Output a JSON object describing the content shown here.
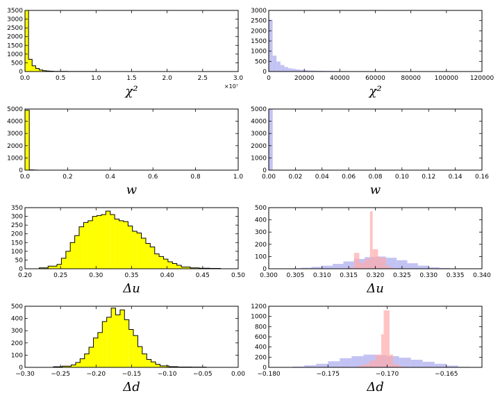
{
  "chart_data": [
    {
      "type": "histogram",
      "xlabel": "χ²",
      "xlim": [
        0,
        3.0
      ],
      "ylim": [
        0,
        3500
      ],
      "x_multiplier_label": "×10⁷",
      "xticks": [
        "0.0",
        "0.5",
        "1.0",
        "1.5",
        "2.0",
        "2.5",
        "3.0"
      ],
      "yticks": [
        "0",
        "500",
        "1000",
        "1500",
        "2000",
        "2500",
        "3000",
        "3500"
      ],
      "series": [
        {
          "color": "#ffff00",
          "edge": "#000000",
          "style": "step-filled",
          "bins": [
            0,
            0.05,
            0.1,
            0.15,
            0.2,
            0.25,
            0.3,
            0.35,
            0.4,
            0.5,
            0.6,
            0.8,
            1.0,
            1.5,
            2.0,
            2.6
          ],
          "counts": [
            3500,
            700,
            330,
            180,
            90,
            50,
            30,
            20,
            12,
            8,
            5,
            3,
            2,
            1,
            1
          ]
        }
      ]
    },
    {
      "type": "histogram",
      "xlabel": "χ²",
      "xlim": [
        0,
        120000
      ],
      "ylim": [
        0,
        3000
      ],
      "xticks": [
        "0",
        "20000",
        "40000",
        "60000",
        "80000",
        "100000",
        "120000"
      ],
      "yticks": [
        "0",
        "500",
        "1000",
        "1500",
        "2000",
        "2500",
        "3000"
      ],
      "series": [
        {
          "color": "#aaaaee",
          "edge": "#8888dd",
          "style": "filled",
          "bins": [
            0,
            2200,
            4400,
            6600,
            8800,
            11000,
            13200,
            15400,
            17600,
            19800,
            22000,
            26400,
            30800,
            35200,
            39600,
            44000,
            52800,
            61600,
            70400,
            79200,
            88000,
            96800,
            105600,
            108000
          ],
          "counts": [
            2540,
            780,
            490,
            320,
            220,
            160,
            130,
            100,
            80,
            70,
            50,
            40,
            30,
            25,
            20,
            15,
            10,
            8,
            6,
            5,
            4,
            3,
            2
          ]
        }
      ]
    },
    {
      "type": "histogram",
      "xlabel": "w",
      "xlim": [
        0,
        1.0
      ],
      "ylim": [
        0,
        5000
      ],
      "xticks": [
        "0.0",
        "0.2",
        "0.4",
        "0.6",
        "0.8",
        "1.0"
      ],
      "yticks": [
        "0",
        "1000",
        "2000",
        "3000",
        "4000",
        "5000"
      ],
      "series": [
        {
          "color": "#ffff00",
          "edge": "#000000",
          "style": "step-filled",
          "bins": [
            0,
            0.02,
            0.04,
            0.06,
            1.0
          ],
          "counts": [
            4900,
            20,
            5,
            2
          ]
        }
      ]
    },
    {
      "type": "histogram",
      "xlabel": "w",
      "xlim": [
        0,
        0.16
      ],
      "ylim": [
        0,
        5000
      ],
      "xticks": [
        "0.00",
        "0.02",
        "0.04",
        "0.06",
        "0.08",
        "0.10",
        "0.12",
        "0.14",
        "0.16"
      ],
      "yticks": [
        "0",
        "1000",
        "2000",
        "3000",
        "4000",
        "5000"
      ],
      "series": [
        {
          "color": "#aaaaee",
          "edge": "#8888dd",
          "style": "filled",
          "bins": [
            0,
            0.003,
            0.006,
            0.15
          ],
          "counts": [
            5000,
            20,
            3
          ]
        }
      ]
    },
    {
      "type": "histogram",
      "xlabel": "Δu",
      "xlim": [
        0.2,
        0.5
      ],
      "ylim": [
        0,
        350
      ],
      "xticks": [
        "0.20",
        "0.25",
        "0.30",
        "0.35",
        "0.40",
        "0.45",
        "0.50"
      ],
      "yticks": [
        "0",
        "50",
        "100",
        "150",
        "200",
        "250",
        "300",
        "350"
      ],
      "series": [
        {
          "color": "#ffff00",
          "edge": "#000000",
          "style": "step-filled",
          "bins": [
            0.22,
            0.2325,
            0.245,
            0.2512,
            0.2575,
            0.2637,
            0.27,
            0.2762,
            0.2825,
            0.2887,
            0.295,
            0.3012,
            0.3075,
            0.3137,
            0.32,
            0.3262,
            0.3325,
            0.3387,
            0.345,
            0.3512,
            0.3575,
            0.3637,
            0.37,
            0.3762,
            0.3825,
            0.3887,
            0.395,
            0.4012,
            0.4075,
            0.4137,
            0.42,
            0.4325,
            0.445,
            0.46,
            0.475
          ],
          "counts": [
            5,
            15,
            25,
            60,
            100,
            150,
            190,
            240,
            265,
            275,
            300,
            305,
            310,
            330,
            310,
            285,
            275,
            270,
            245,
            215,
            205,
            175,
            145,
            125,
            85,
            70,
            55,
            40,
            30,
            20,
            10,
            5,
            3,
            2
          ]
        }
      ]
    },
    {
      "type": "histogram",
      "xlabel": "Δu",
      "xlim": [
        0.3,
        0.34
      ],
      "ylim": [
        0,
        500
      ],
      "xticks": [
        "0.300",
        "0.305",
        "0.310",
        "0.315",
        "0.320",
        "0.325",
        "0.330",
        "0.335",
        "0.340"
      ],
      "yticks": [
        "0",
        "100",
        "200",
        "300",
        "400",
        "500"
      ],
      "series": [
        {
          "color": "#aaaaee",
          "edge": "#8888dd",
          "style": "filled",
          "bins": [
            0.302,
            0.304,
            0.306,
            0.308,
            0.31,
            0.312,
            0.314,
            0.316,
            0.318,
            0.32,
            0.322,
            0.324,
            0.326,
            0.328,
            0.33,
            0.332,
            0.334,
            0.336,
            0.338
          ],
          "counts": [
            2,
            4,
            8,
            15,
            25,
            40,
            60,
            80,
            95,
            100,
            90,
            70,
            45,
            25,
            12,
            6,
            3,
            1
          ]
        },
        {
          "color": "#ffaaaa",
          "edge": "#ff8888",
          "style": "filled",
          "bins": [
            0.315,
            0.316,
            0.317,
            0.318,
            0.319,
            0.3195,
            0.3205,
            0.321,
            0.322,
            0.323,
            0.324
          ],
          "counts": [
            10,
            130,
            50,
            80,
            470,
            160,
            100,
            90,
            20,
            5
          ]
        }
      ]
    },
    {
      "type": "histogram",
      "xlabel": "Δd",
      "xlim": [
        -0.3,
        0.0
      ],
      "ylim": [
        0,
        500
      ],
      "xticks": [
        "−0.30",
        "−0.25",
        "−0.20",
        "−0.15",
        "−0.10",
        "−0.05",
        "0.00"
      ],
      "yticks": [
        "0",
        "100",
        "200",
        "300",
        "400",
        "500"
      ],
      "series": [
        {
          "color": "#ffff00",
          "edge": "#000000",
          "style": "step-filled",
          "bins": [
            -0.26,
            -0.2475,
            -0.235,
            -0.2287,
            -0.2225,
            -0.2162,
            -0.21,
            -0.2037,
            -0.1975,
            -0.1912,
            -0.185,
            -0.1787,
            -0.1725,
            -0.1662,
            -0.16,
            -0.1537,
            -0.1475,
            -0.1412,
            -0.135,
            -0.1287,
            -0.1225,
            -0.1162,
            -0.11,
            -0.0975,
            -0.085,
            -0.065,
            -0.045
          ],
          "counts": [
            5,
            10,
            20,
            40,
            70,
            110,
            165,
            240,
            285,
            375,
            410,
            485,
            430,
            470,
            390,
            310,
            260,
            170,
            110,
            65,
            45,
            25,
            12,
            6,
            3,
            2
          ]
        }
      ]
    },
    {
      "type": "histogram",
      "xlabel": "Δd",
      "xlim": [
        -0.18,
        -0.162
      ],
      "ylim": [
        0,
        1200
      ],
      "xticks": [
        "−0.180",
        "−0.175",
        "−0.170",
        "−0.165"
      ],
      "yticks": [
        "0",
        "200",
        "400",
        "600",
        "800",
        "1000",
        "1200"
      ],
      "series": [
        {
          "color": "#aaaaee",
          "edge": "#8888dd",
          "style": "filled",
          "bins": [
            -0.1787,
            -0.178,
            -0.177,
            -0.176,
            -0.175,
            -0.174,
            -0.173,
            -0.172,
            -0.171,
            -0.17,
            -0.169,
            -0.168,
            -0.167,
            -0.166,
            -0.165,
            -0.164,
            -0.163
          ],
          "counts": [
            5,
            15,
            40,
            70,
            120,
            180,
            220,
            250,
            240,
            220,
            190,
            150,
            110,
            70,
            35,
            10
          ]
        },
        {
          "color": "#ffaaaa",
          "edge": "#ff8888",
          "style": "filled",
          "bins": [
            -0.1725,
            -0.172,
            -0.1715,
            -0.171,
            -0.1705,
            -0.1703,
            -0.1698,
            -0.1695,
            -0.169,
            -0.1685
          ],
          "counts": [
            30,
            60,
            130,
            250,
            650,
            1120,
            250,
            60,
            20
          ]
        }
      ]
    }
  ]
}
